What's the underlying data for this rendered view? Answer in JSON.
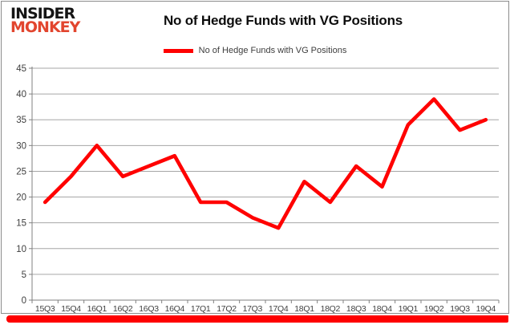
{
  "logo": {
    "line1": "INSIDER",
    "line2": "MONKEY"
  },
  "header": {
    "title": "No of Hedge Funds with VG Positions"
  },
  "legend": {
    "label": "No of Hedge Funds with VG Positions",
    "color": "#ff0000"
  },
  "colors": {
    "series_line": "#ff0000",
    "bottom_bar": "#fe0000",
    "gridline": "#a6a6a6",
    "axis": "#808080",
    "tick_text": "#404040",
    "logo_accent": "#e2452e"
  },
  "chart_data": {
    "type": "line",
    "title": "No of Hedge Funds with VG Positions",
    "categories": [
      "15Q3",
      "15Q4",
      "16Q1",
      "16Q2",
      "16Q3",
      "16Q4",
      "17Q1",
      "17Q2",
      "17Q3",
      "17Q4",
      "18Q1",
      "18Q2",
      "18Q3",
      "18Q4",
      "19Q1",
      "19Q2",
      "19Q3",
      "19Q4"
    ],
    "series": [
      {
        "name": "No of Hedge Funds with VG Positions",
        "color": "#ff0000",
        "values": [
          19,
          24,
          30,
          24,
          26,
          28,
          19,
          19,
          16,
          14,
          23,
          19,
          26,
          22,
          34,
          39,
          33,
          35
        ]
      }
    ],
    "xlabel": "",
    "ylabel": "",
    "ylim": [
      0,
      45
    ],
    "yticks": [
      0,
      5,
      10,
      15,
      20,
      25,
      30,
      35,
      40,
      45
    ],
    "grid": true,
    "legend_position": "top-center"
  }
}
